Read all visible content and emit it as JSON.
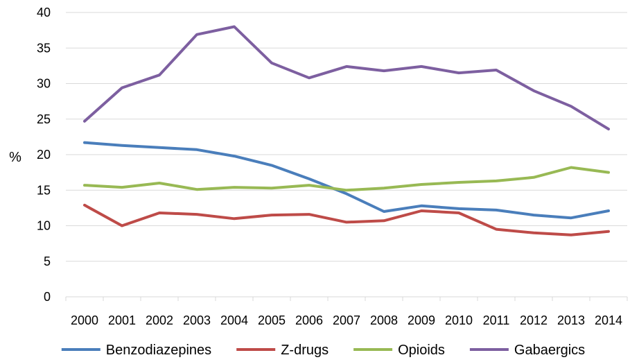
{
  "chart_data": {
    "type": "line",
    "title": "",
    "xlabel": "",
    "ylabel": "%",
    "ylim": [
      0,
      40
    ],
    "yticks": [
      0,
      5,
      10,
      15,
      20,
      25,
      30,
      35,
      40
    ],
    "grid": true,
    "legend_position": "bottom",
    "categories": [
      "2000",
      "2001",
      "2002",
      "2003",
      "2004",
      "2005",
      "2006",
      "2007",
      "2008",
      "2009",
      "2010",
      "2011",
      "2012",
      "2013",
      "2014"
    ],
    "series": [
      {
        "name": "Benzodiazepines",
        "color": "#4a7ebb",
        "values": [
          21.7,
          21.3,
          21.0,
          20.7,
          19.8,
          18.5,
          16.6,
          14.5,
          12.0,
          12.8,
          12.4,
          12.2,
          11.5,
          11.1,
          12.1
        ]
      },
      {
        "name": "Z-drugs",
        "color": "#be4b48",
        "values": [
          12.9,
          10.0,
          11.8,
          11.6,
          11.0,
          11.5,
          11.6,
          10.5,
          10.7,
          12.1,
          11.8,
          9.5,
          9.0,
          8.7,
          9.2
        ]
      },
      {
        "name": "Opioids",
        "color": "#98b954",
        "values": [
          15.7,
          15.4,
          16.0,
          15.1,
          15.4,
          15.3,
          15.7,
          15.0,
          15.3,
          15.8,
          16.1,
          16.3,
          16.8,
          18.2,
          17.5
        ]
      },
      {
        "name": "Gabaergics",
        "color": "#7d5fa0",
        "values": [
          24.7,
          29.4,
          31.2,
          36.9,
          38.0,
          32.9,
          30.8,
          32.4,
          31.8,
          32.4,
          31.5,
          31.9,
          29.0,
          26.8,
          23.6
        ]
      }
    ]
  }
}
